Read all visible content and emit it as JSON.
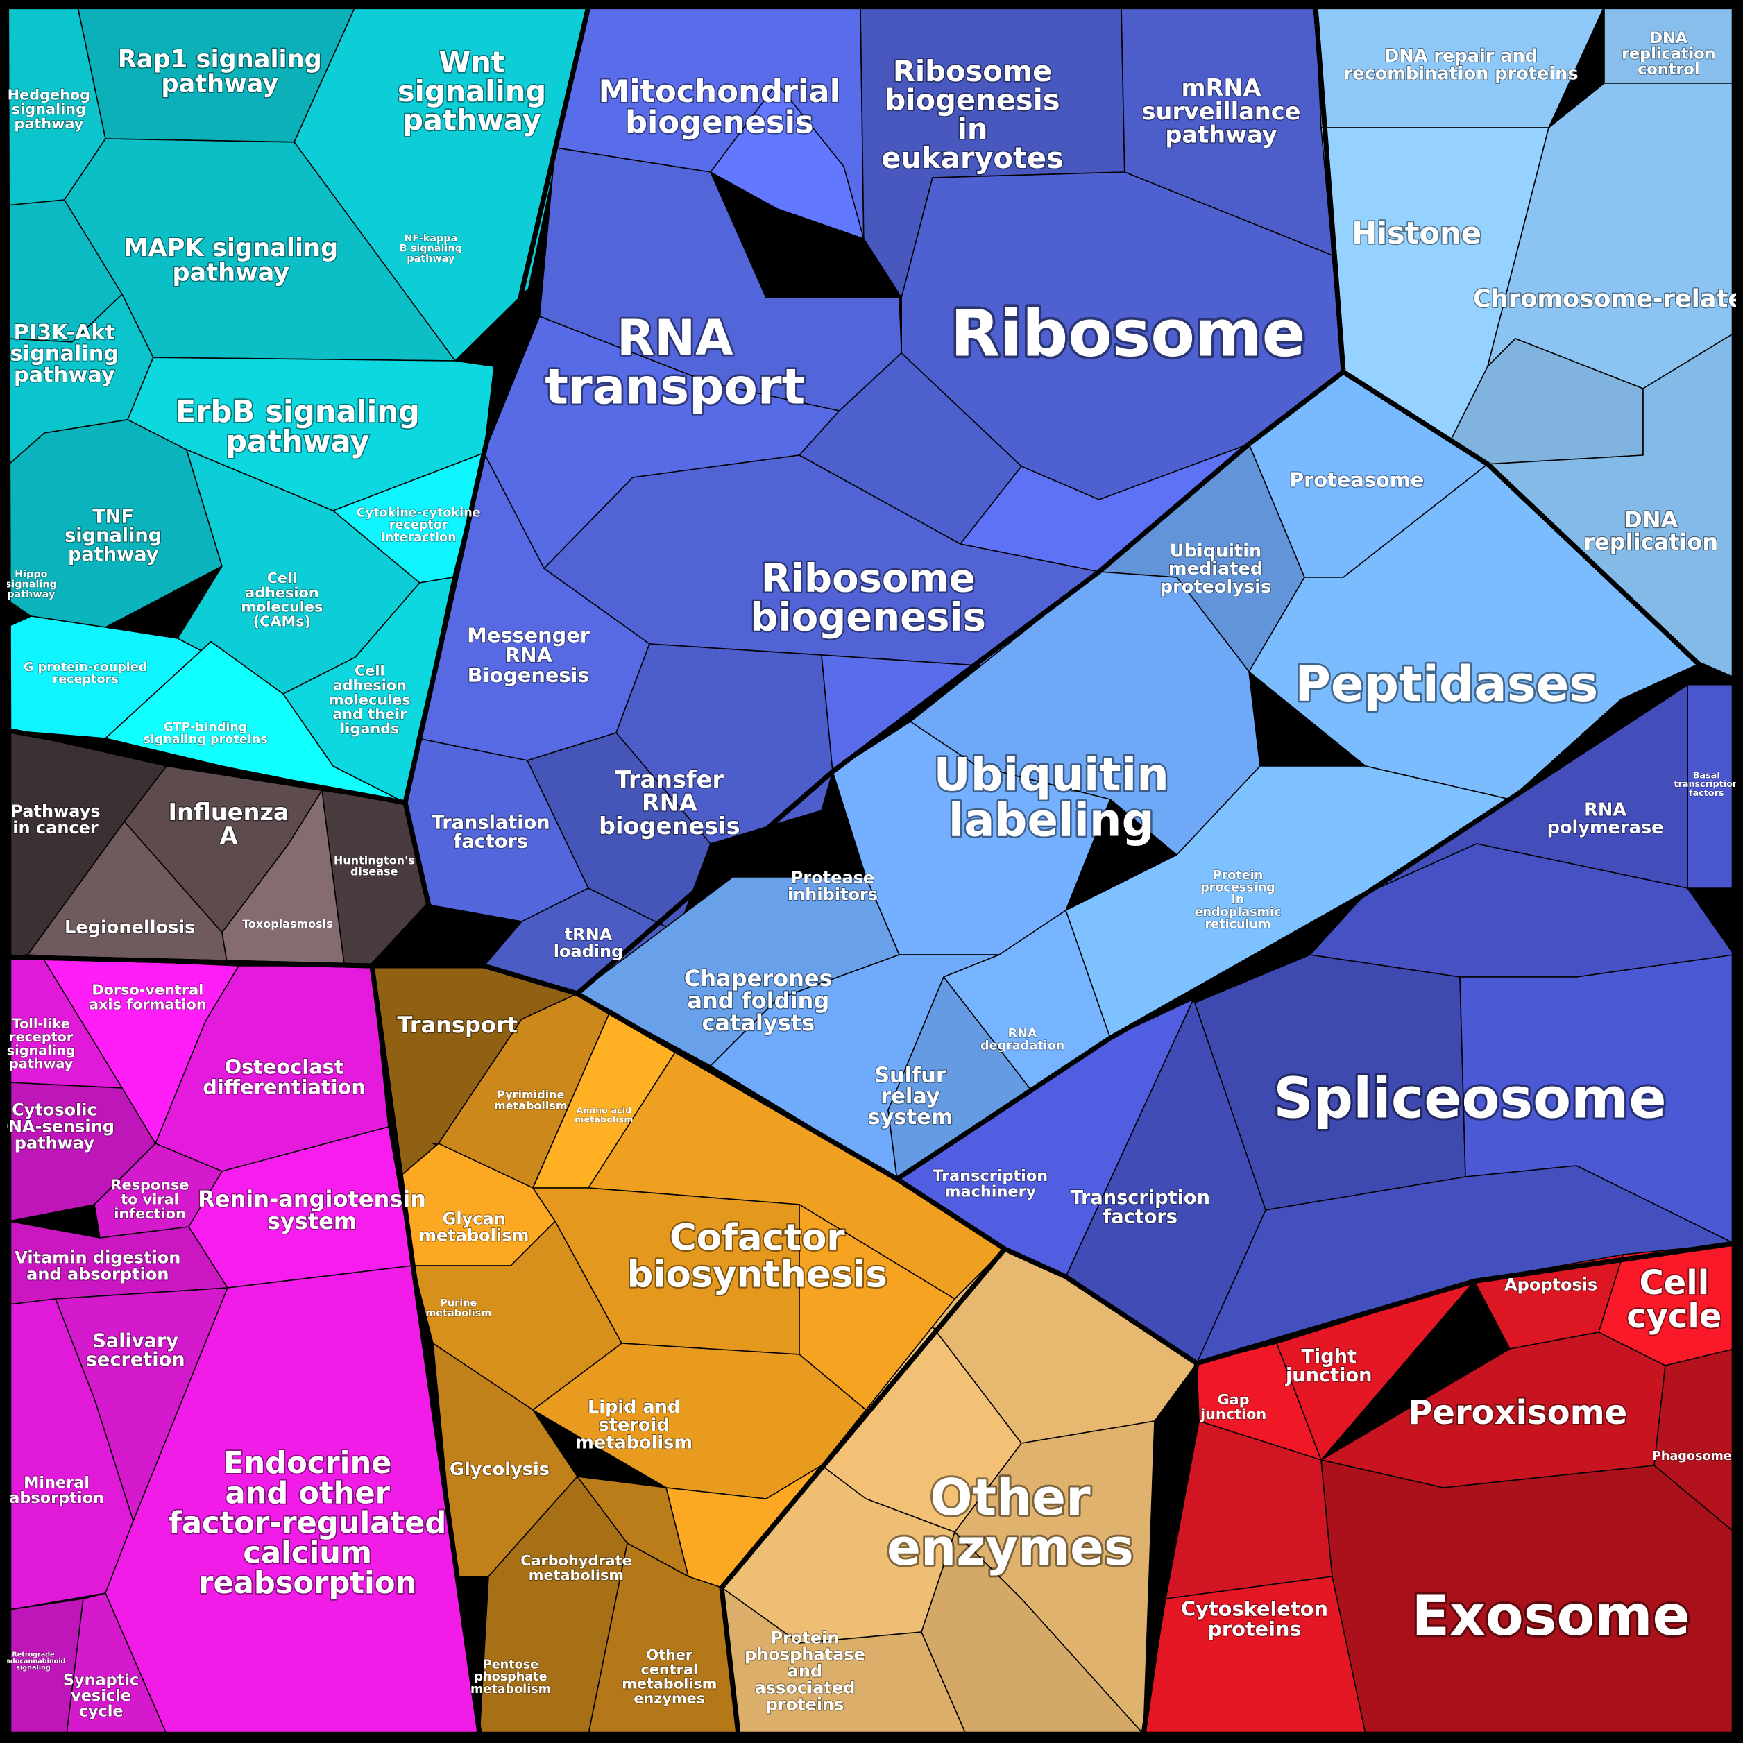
{
  "groups": {
    "signaling": {
      "color": "#0cc4cc",
      "labels": [
        "Rap1 signaling pathway",
        "Wnt signaling pathway",
        "Hedgehog signaling pathway",
        "MAPK signaling pathway",
        "NF-kappa B signaling pathway",
        "PI3K-Akt signaling pathway",
        "ErbB signaling pathway",
        "TNF signaling pathway",
        "Hippo signaling pathway",
        "Cytokine-cytokine receptor interaction",
        "Cell adhesion molecules (CAMs)",
        "Cell adhesion molecules and their ligands",
        "G protein-coupled receptors",
        "GTP-binding signaling proteins"
      ]
    },
    "disease": {
      "color": "#4a3c3e",
      "labels": [
        "Pathways in cancer",
        "Influenza A",
        "Legionellosis",
        "Toxoplasmosis",
        "Huntington's disease"
      ]
    },
    "rna": {
      "color": "#5568e0",
      "labels": [
        "Mitochondrial biogenesis",
        "Ribosome biogenesis in eukaryotes",
        "mRNA surveillance pathway",
        "RNA transport",
        "Ribosome",
        "Ribosome biogenesis",
        "Messenger RNA Biogenesis",
        "Transfer RNA biogenesis",
        "Translation factors",
        "tRNA loading"
      ]
    },
    "dna": {
      "color": "#8ec8f8",
      "labels": [
        "DNA repair and recombination proteins",
        "DNA replication control",
        "Histone",
        "Chromosome-related",
        "DNA replication"
      ]
    },
    "protein": {
      "color": "#6ea8f6",
      "labels": [
        "Proteasome",
        "Ubiquitin mediated proteolysis",
        "Peptidases",
        "Ubiquitin labeling",
        "Protease inhibitors",
        "Protein processing in endoplasmic reticulum",
        "Chaperones and folding catalysts",
        "Sulfur relay system",
        "RNA degradation"
      ]
    },
    "transcription": {
      "color": "#4652c4",
      "labels": [
        "Basal transcription factors",
        "RNA polymerase",
        "Spliceosome",
        "Transcription machinery",
        "Transcription factors"
      ]
    },
    "immune": {
      "color": "#e01ad8",
      "labels": [
        "Dorso-ventral axis formation",
        "Toll-like receptor signaling pathway",
        "Osteoclast differentiation",
        "Cytosolic DNA-sensing pathway",
        "Response to viral infection",
        "Renin-angiotensin system",
        "Vitamin digestion and absorption",
        "Salivary secretion",
        "Mineral absorption",
        "Endocrine and other factor-regulated calcium reabsorption",
        "Retrograde endocannabinoid signaling",
        "Synaptic vesicle cycle"
      ]
    },
    "metabolism": {
      "color": "#f0a020",
      "labels": [
        "Transport",
        "Pyrimidine metabolism",
        "Amino acid metabolism",
        "Glycan metabolism",
        "Cofactor biosynthesis",
        "Purine metabolism",
        "Lipid and steroid metabolism",
        "Glycolysis",
        "Carbohydrate metabolism",
        "Pentose phosphate metabolism",
        "Other central metabolism enzymes"
      ]
    },
    "enzymes": {
      "color": "#e6b870",
      "labels": [
        "Other enzymes",
        "Protein phosphatase and associated proteins"
      ]
    },
    "cellular": {
      "color": "#c81420",
      "labels": [
        "Apoptosis",
        "Cell cycle",
        "Tight junction",
        "Gap junction",
        "Peroxisome",
        "Phagosome",
        "Cytoskeleton proteins",
        "Exosome"
      ]
    }
  }
}
